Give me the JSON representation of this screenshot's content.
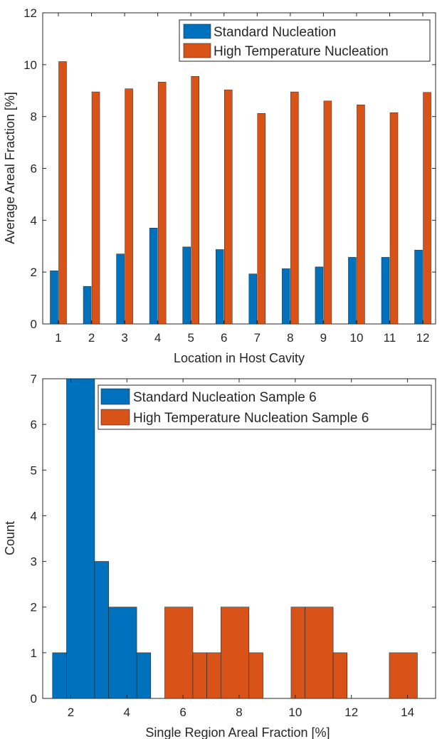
{
  "chart_data": [
    {
      "type": "bar",
      "title": "",
      "xlabel": "Location in Host Cavity",
      "ylabel": "Average Areal Fraction [%]",
      "categories": [
        "1",
        "2",
        "3",
        "4",
        "5",
        "6",
        "7",
        "8",
        "9",
        "10",
        "11",
        "12"
      ],
      "series": [
        {
          "name": "Standard Nucleation",
          "color": "#0072BD",
          "values": [
            2.05,
            1.45,
            2.7,
            3.7,
            2.97,
            2.87,
            1.93,
            2.13,
            2.2,
            2.57,
            2.57,
            2.85
          ]
        },
        {
          "name": "High Temperature Nucleation",
          "color": "#D95319",
          "values": [
            10.12,
            8.95,
            9.07,
            9.33,
            9.55,
            9.03,
            8.12,
            8.95,
            8.6,
            8.45,
            8.15,
            8.93
          ]
        }
      ],
      "ylim": [
        0,
        12
      ],
      "yticks": [
        "0",
        "2",
        "4",
        "6",
        "8",
        "10",
        "12"
      ],
      "grid": false,
      "legend_position": "top-right"
    },
    {
      "type": "histogram",
      "title": "",
      "xlabel": "Single Region Areal Fraction [%]",
      "ylabel": "Count",
      "series": [
        {
          "name": "Standard Nucleation Sample 6",
          "color": "#0072BD",
          "bin_edges": [
            1.35,
            2.35,
            3.35,
            4.35,
            5.35,
            6.35
          ],
          "bins": [
            {
              "from": 1.35,
              "to": 1.85,
              "count": 1
            },
            {
              "from": 1.85,
              "to": 2.85,
              "count": 7
            },
            {
              "from": 2.85,
              "to": 3.35,
              "count": 3
            },
            {
              "from": 3.35,
              "to": 4.35,
              "count": 2
            },
            {
              "from": 4.35,
              "to": 4.85,
              "count": 1
            }
          ]
        },
        {
          "name": "High Temperature Nucleation Sample 6",
          "color": "#D95319",
          "bins": [
            {
              "from": 5.35,
              "to": 6.35,
              "count": 2
            },
            {
              "from": 6.35,
              "to": 6.85,
              "count": 1
            },
            {
              "from": 6.85,
              "to": 7.35,
              "count": 1
            },
            {
              "from": 7.35,
              "to": 8.35,
              "count": 2
            },
            {
              "from": 8.35,
              "to": 8.85,
              "count": 1
            },
            {
              "from": 9.85,
              "to": 10.35,
              "count": 2
            },
            {
              "from": 10.35,
              "to": 11.35,
              "count": 2
            },
            {
              "from": 11.35,
              "to": 11.85,
              "count": 1
            },
            {
              "from": 13.35,
              "to": 14.35,
              "count": 1
            }
          ]
        }
      ],
      "xlim": [
        1,
        15
      ],
      "ylim": [
        0,
        7
      ],
      "xticks": [
        "2",
        "4",
        "6",
        "8",
        "10",
        "12",
        "14"
      ],
      "yticks": [
        "0",
        "1",
        "2",
        "3",
        "4",
        "5",
        "6",
        "7"
      ],
      "grid": false,
      "legend_position": "top-right"
    }
  ]
}
